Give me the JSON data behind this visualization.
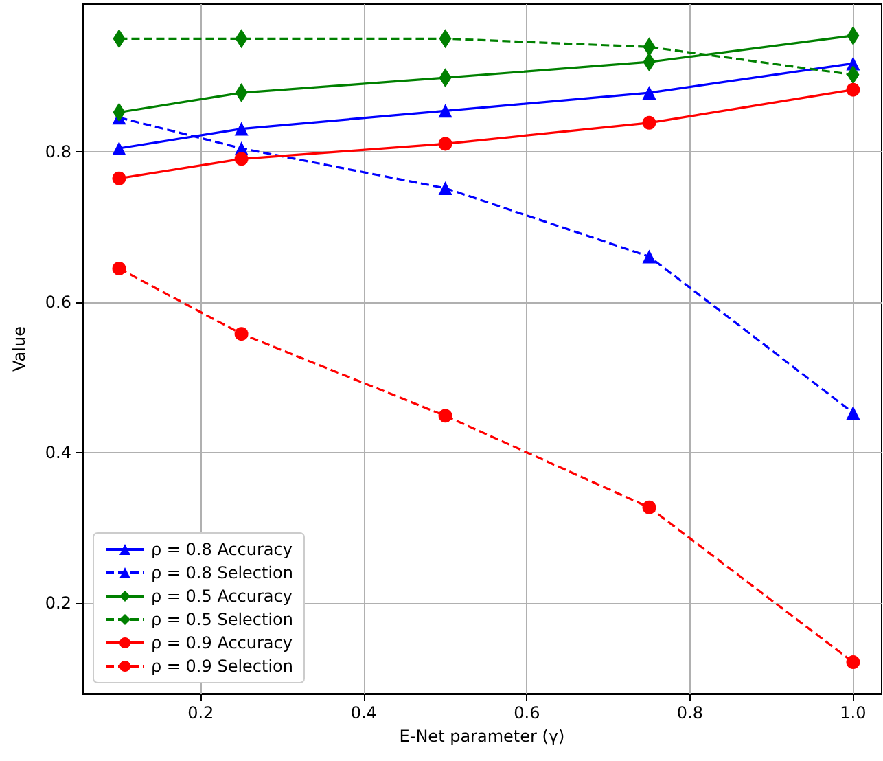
{
  "chart_data": {
    "type": "line",
    "xlabel": "E-Net parameter (γ)",
    "ylabel": "Value",
    "xlim": [
      0.055,
      1.035
    ],
    "ylim": [
      0.079,
      0.997
    ],
    "xticks": [
      0.2,
      0.4,
      0.6,
      0.8,
      {
        "value": 1,
        "label": "1.0"
      }
    ],
    "yticks": [
      0.2,
      0.4,
      0.6,
      0.8
    ],
    "grid": true,
    "legend": "bottom left",
    "x": [
      0.1,
      0.25,
      0.5,
      0.75,
      1.0
    ],
    "series": [
      {
        "name": "ρ = 0.8 Accuracy",
        "color": "#0000ff",
        "marker": "triangle",
        "line_style": "solid",
        "values": [
          0.805,
          0.831,
          0.855,
          0.879,
          0.918
        ]
      },
      {
        "name": "ρ = 0.8 Selection",
        "color": "#0000ff",
        "marker": "triangle",
        "line_style": "dashed",
        "values": [
          0.846,
          0.805,
          0.752,
          0.661,
          0.453
        ]
      },
      {
        "name": "ρ = 0.5 Accuracy",
        "color": "#008000",
        "marker": "diamond",
        "line_style": "solid",
        "values": [
          0.853,
          0.879,
          0.899,
          0.92,
          0.955
        ]
      },
      {
        "name": "ρ = 0.5 Selection",
        "color": "#008000",
        "marker": "diamond",
        "line_style": "dashed",
        "values": [
          0.951,
          0.951,
          0.951,
          0.94,
          0.903
        ]
      },
      {
        "name": "ρ = 0.9 Accuracy",
        "color": "#ff0000",
        "marker": "circle",
        "line_style": "solid",
        "values": [
          0.765,
          0.791,
          0.811,
          0.839,
          0.883
        ]
      },
      {
        "name": "ρ = 0.9 Selection",
        "color": "#ff0000",
        "marker": "circle",
        "line_style": "dashed",
        "values": [
          0.645,
          0.558,
          0.449,
          0.327,
          0.121
        ]
      }
    ]
  }
}
